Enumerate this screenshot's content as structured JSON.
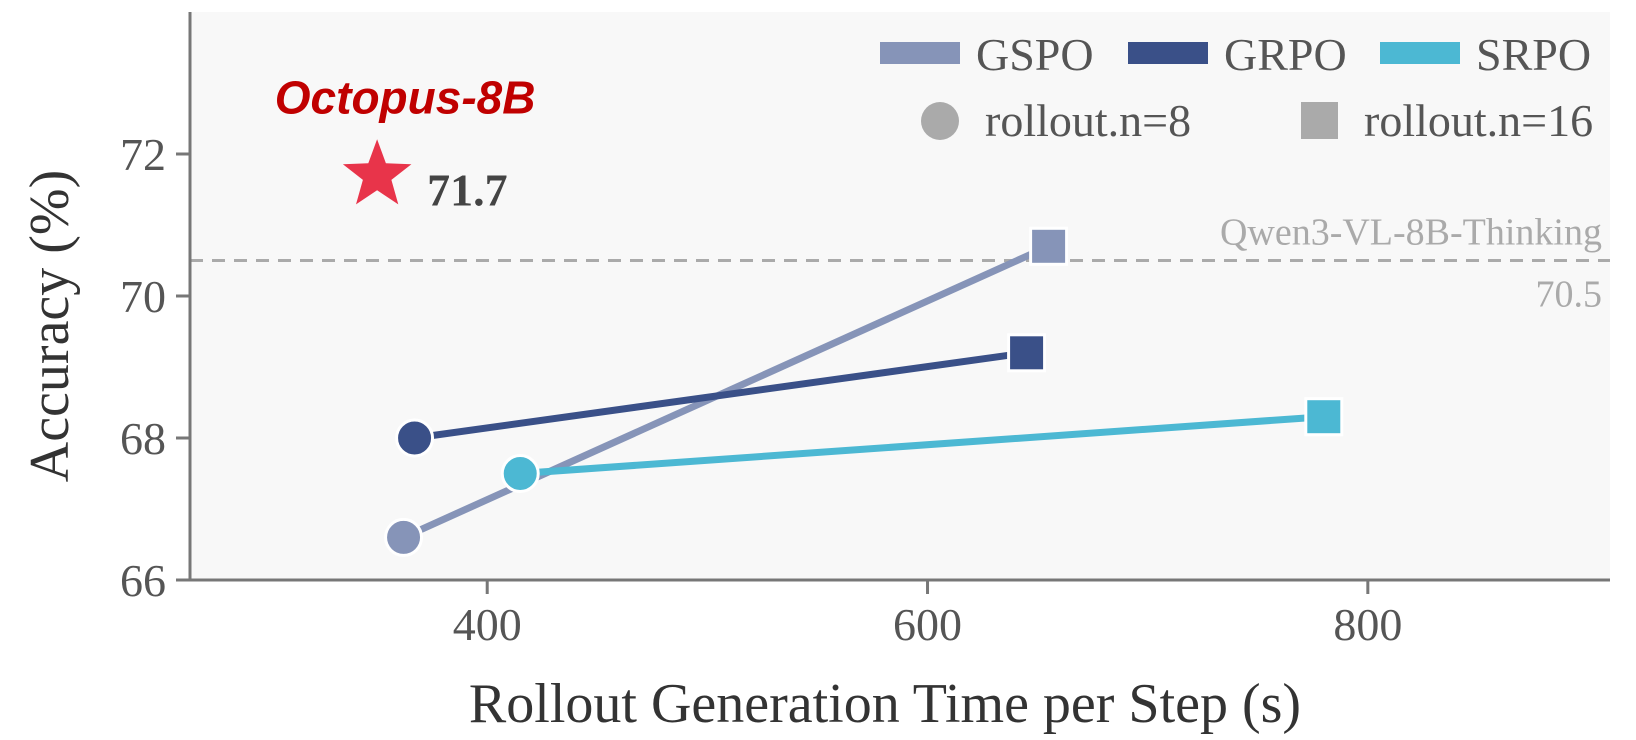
{
  "chart_data": {
    "type": "line",
    "xlabel": "Rollout Generation Time per Step (s)",
    "ylabel": "Accuracy (%)",
    "xlim": [
      265,
      910
    ],
    "ylim": [
      66,
      74
    ],
    "xticks": [
      400,
      600,
      800
    ],
    "yticks": [
      66,
      68,
      70,
      72
    ],
    "grid": false,
    "legend_placement": "top-right",
    "series": [
      {
        "name": "GSPO",
        "color": "#8694b8",
        "points": [
          {
            "x": 362,
            "y": 66.6,
            "rollout": "8"
          },
          {
            "x": 655,
            "y": 70.7,
            "rollout": "16"
          }
        ]
      },
      {
        "name": "GRPO",
        "color": "#3a5088",
        "points": [
          {
            "x": 367,
            "y": 68.0,
            "rollout": "8"
          },
          {
            "x": 645,
            "y": 69.2,
            "rollout": "16"
          }
        ]
      },
      {
        "name": "SRPO",
        "color": "#4cb8d3",
        "points": [
          {
            "x": 415,
            "y": 67.5,
            "rollout": "8"
          },
          {
            "x": 780,
            "y": 68.3,
            "rollout": "16"
          }
        ]
      }
    ],
    "marker_legend": [
      {
        "shape": "circle",
        "label": "rollout.n=8"
      },
      {
        "shape": "square",
        "label": "rollout.n=16"
      }
    ],
    "reference_line": {
      "label": "Qwen3-VL-8B-Thinking",
      "value_label": "70.5",
      "y": 70.5
    },
    "highlight": {
      "label": "Octopus-8B",
      "value_label": "71.7",
      "x": 350,
      "y": 71.7,
      "color": "#e8344a"
    }
  }
}
